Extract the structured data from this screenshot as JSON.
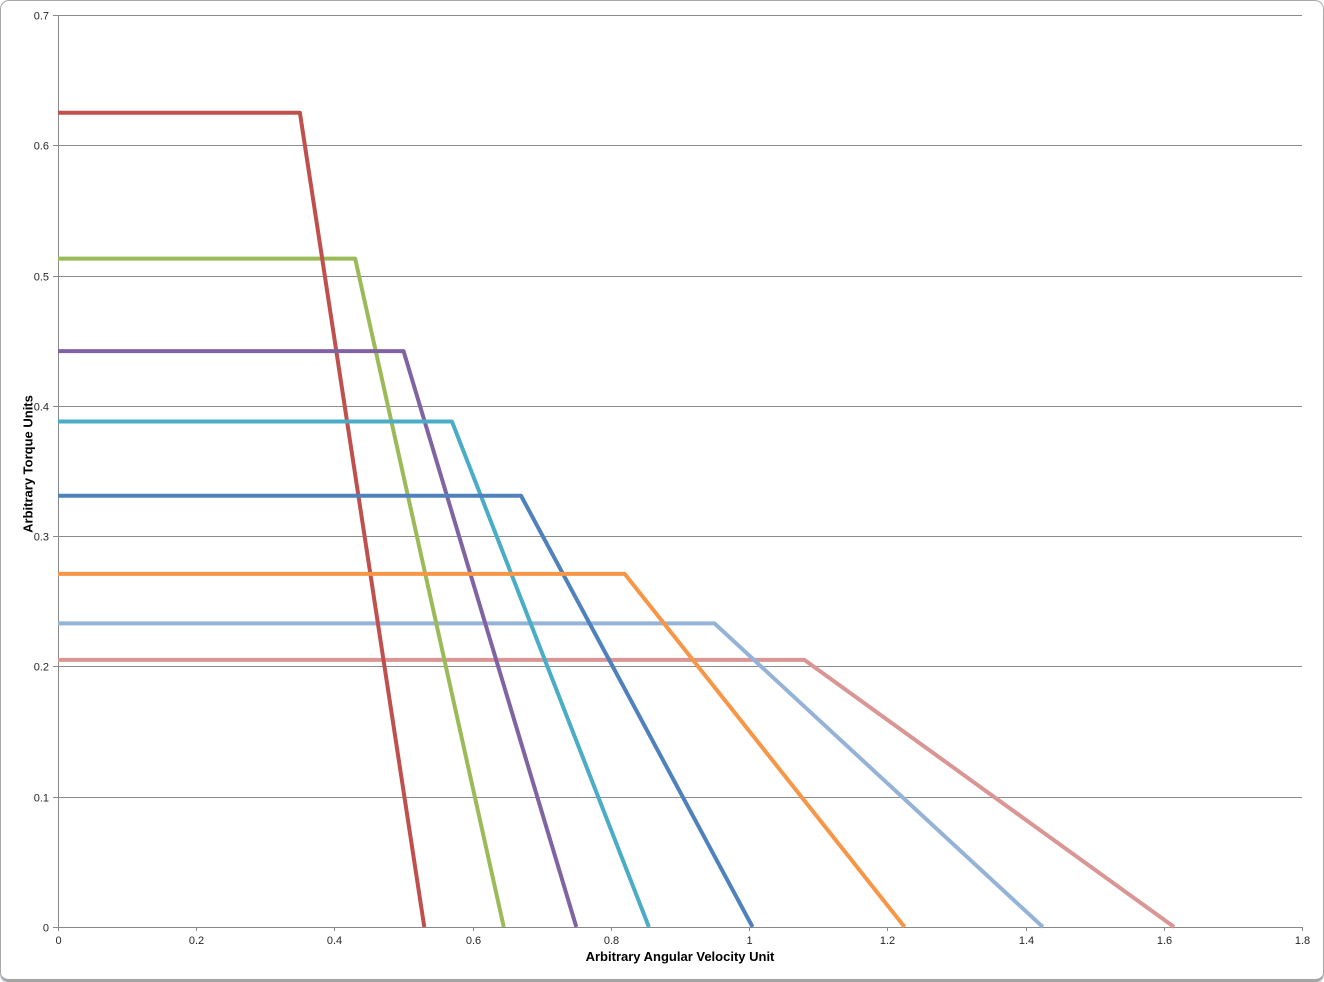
{
  "chart_data": {
    "type": "line",
    "title": "",
    "xlabel": "Arbitrary Angular Velocity Unit",
    "ylabel": "Arbitrary Torque Units",
    "xlim": [
      0,
      1.8
    ],
    "ylim": [
      0,
      0.7
    ],
    "xticks": [
      0,
      0.2,
      0.4,
      0.6,
      0.8,
      1,
      1.2,
      1.4,
      1.6,
      1.8
    ],
    "xtick_labels": [
      "0",
      "0.2",
      "0.4",
      "0.6",
      "0.8",
      "1",
      "1.2",
      "1.4",
      "1.6",
      "1.8"
    ],
    "yticks": [
      0,
      0.1,
      0.2,
      0.3,
      0.4,
      0.5,
      0.6,
      0.7
    ],
    "ytick_labels": [
      "0",
      "0.1",
      "0.2",
      "0.3",
      "0.4",
      "0.5",
      "0.6",
      "0.7"
    ],
    "grid": "horizontal-only",
    "legend": "none",
    "series": [
      {
        "color": "#C0504D",
        "flat_torque": 0.625,
        "base_speed": 0.35,
        "zero_speed": 0.53,
        "points": [
          [
            0,
            0.625
          ],
          [
            0.35,
            0.625
          ],
          [
            0.53,
            0
          ]
        ]
      },
      {
        "color": "#9BBB59",
        "flat_torque": 0.513,
        "base_speed": 0.43,
        "zero_speed": 0.645,
        "points": [
          [
            0,
            0.513
          ],
          [
            0.43,
            0.513
          ],
          [
            0.645,
            0
          ]
        ]
      },
      {
        "color": "#8064A2",
        "flat_torque": 0.442,
        "base_speed": 0.5,
        "zero_speed": 0.75,
        "points": [
          [
            0,
            0.442
          ],
          [
            0.5,
            0.442
          ],
          [
            0.75,
            0
          ]
        ]
      },
      {
        "color": "#4BACC6",
        "flat_torque": 0.388,
        "base_speed": 0.57,
        "zero_speed": 0.855,
        "points": [
          [
            0,
            0.388
          ],
          [
            0.57,
            0.388
          ],
          [
            0.855,
            0
          ]
        ]
      },
      {
        "color": "#4F81BD",
        "flat_torque": 0.331,
        "base_speed": 0.67,
        "zero_speed": 1.005,
        "points": [
          [
            0,
            0.331
          ],
          [
            0.67,
            0.331
          ],
          [
            1.005,
            0
          ]
        ]
      },
      {
        "color": "#F79646",
        "flat_torque": 0.271,
        "base_speed": 0.82,
        "zero_speed": 1.225,
        "points": [
          [
            0,
            0.271
          ],
          [
            0.82,
            0.271
          ],
          [
            1.225,
            0
          ]
        ]
      },
      {
        "color": "#95B3D7",
        "flat_torque": 0.233,
        "base_speed": 0.95,
        "zero_speed": 1.425,
        "points": [
          [
            0,
            0.233
          ],
          [
            0.95,
            0.233
          ],
          [
            1.425,
            0
          ]
        ]
      },
      {
        "color": "#D99694",
        "flat_torque": 0.205,
        "base_speed": 1.08,
        "zero_speed": 1.615,
        "points": [
          [
            0,
            0.205
          ],
          [
            1.08,
            0.205
          ],
          [
            1.615,
            0
          ]
        ]
      }
    ],
    "draw_order": [
      7,
      6,
      1,
      0,
      2,
      3,
      4,
      5
    ]
  },
  "colors": {
    "background": "#FFFFFF",
    "gridline": "#8C8C8C",
    "axis": "#898989",
    "tick_label": "#262626",
    "frame_border": "#A9A9A9"
  }
}
